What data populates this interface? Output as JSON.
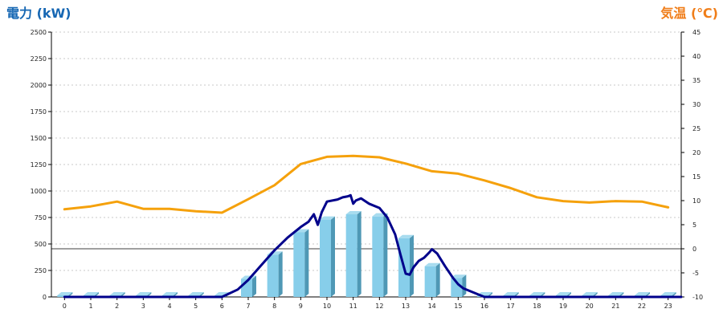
{
  "chart_data": {
    "type": "bar",
    "left_axis_title": "電力 (kW)",
    "right_axis_title": "気温 (℃)",
    "categories": [
      "0",
      "1",
      "2",
      "3",
      "4",
      "5",
      "6",
      "7",
      "8",
      "9",
      "10",
      "11",
      "12",
      "13",
      "14",
      "15",
      "16",
      "17",
      "18",
      "19",
      "20",
      "21",
      "22",
      "23"
    ],
    "left_ylim": [
      0,
      2500
    ],
    "left_yticks": [
      0,
      250,
      500,
      750,
      1000,
      1250,
      1500,
      1750,
      2000,
      2250,
      2500
    ],
    "right_ylim": [
      -10,
      45
    ],
    "right_yticks": [
      -10,
      -5,
      0,
      5,
      10,
      15,
      20,
      25,
      30,
      35,
      40,
      45
    ],
    "grid": true,
    "series": [
      {
        "kind": "bar",
        "axis": "left",
        "values": [
          15,
          15,
          15,
          15,
          15,
          15,
          15,
          170,
          400,
          610,
          730,
          780,
          760,
          555,
          290,
          180,
          15,
          15,
          15,
          15,
          15,
          15,
          15,
          15
        ]
      },
      {
        "kind": "line",
        "axis": "left",
        "x": [
          0,
          6,
          6.6,
          7,
          7.5,
          8,
          8.5,
          9,
          9.3,
          9.5,
          9.65,
          9.8,
          10,
          10.4,
          10.6,
          10.8,
          10.9,
          11,
          11.1,
          11.3,
          11.6,
          12,
          12.3,
          12.6,
          12.8,
          13,
          13.15,
          13.3,
          13.5,
          13.7,
          13.9,
          14,
          14.2,
          14.5,
          14.8,
          15,
          15.2,
          15.5,
          15.8,
          16,
          24
        ],
        "values": [
          0,
          0,
          70,
          160,
          300,
          440,
          560,
          660,
          710,
          780,
          680,
          800,
          900,
          920,
          940,
          950,
          960,
          880,
          910,
          930,
          880,
          840,
          750,
          590,
          400,
          220,
          210,
          280,
          340,
          370,
          420,
          450,
          410,
          290,
          180,
          120,
          80,
          50,
          20,
          0,
          0
        ]
      },
      {
        "kind": "line",
        "axis": "right",
        "x": [
          0,
          1,
          2,
          3,
          4,
          5,
          6,
          7,
          8,
          9,
          10,
          11,
          12,
          13,
          14,
          15,
          16,
          17,
          18,
          19,
          20,
          21,
          22,
          23
        ],
        "values": [
          8.2,
          8.8,
          9.8,
          8.3,
          8.3,
          7.8,
          7.5,
          10.3,
          13.2,
          17.6,
          19.1,
          19.3,
          19.0,
          17.7,
          16.1,
          15.6,
          14.2,
          12.6,
          10.7,
          9.9,
          9.6,
          9.9,
          9.8,
          8.6
        ]
      }
    ],
    "colors": {
      "bar_front": "#87ceea",
      "bar_side": "#4f98b5",
      "bar_top": "#a8dcef",
      "power_line": "#00008b",
      "temp_line": "#f5a10c",
      "left_title": "#1667b3",
      "right_title": "#f07d18",
      "grid": "#c8c8c8"
    }
  }
}
